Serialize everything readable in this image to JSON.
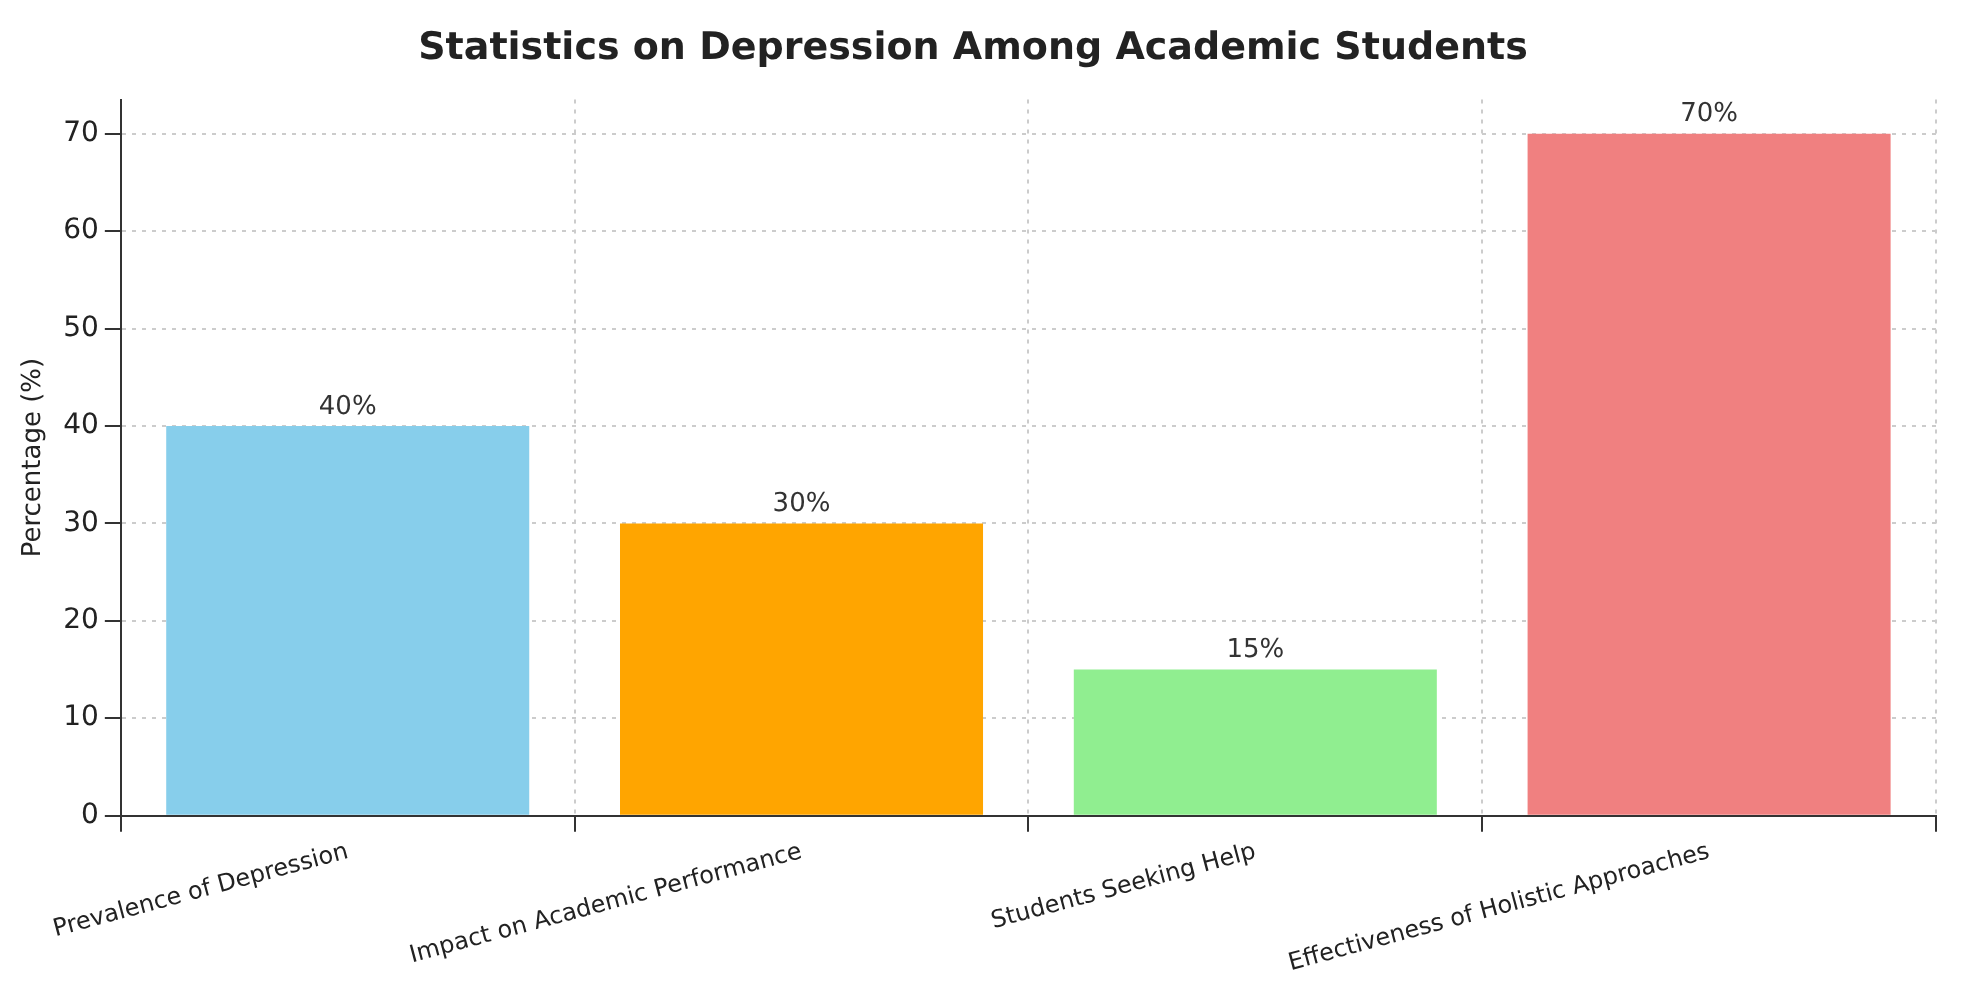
{
  "chart_data": {
    "type": "bar",
    "title": "Statistics on Depression Among Academic Students",
    "ylabel": "Percentage (%)",
    "categories": [
      "Prevalence of Depression",
      "Impact on Academic Performance",
      "Students Seeking Help",
      "Effectiveness of Holistic Approaches"
    ],
    "values": [
      40,
      30,
      15,
      70
    ],
    "colors": [
      "#87ceeb",
      "#ffa500",
      "#90ee90",
      "#f08080"
    ],
    "value_labels": [
      "40%",
      "30%",
      "15%",
      "70%"
    ],
    "ylim": [
      0,
      73.5
    ],
    "yticks": [
      0,
      10,
      20,
      30,
      40,
      50,
      60,
      70
    ],
    "grid": true,
    "legend": false
  }
}
